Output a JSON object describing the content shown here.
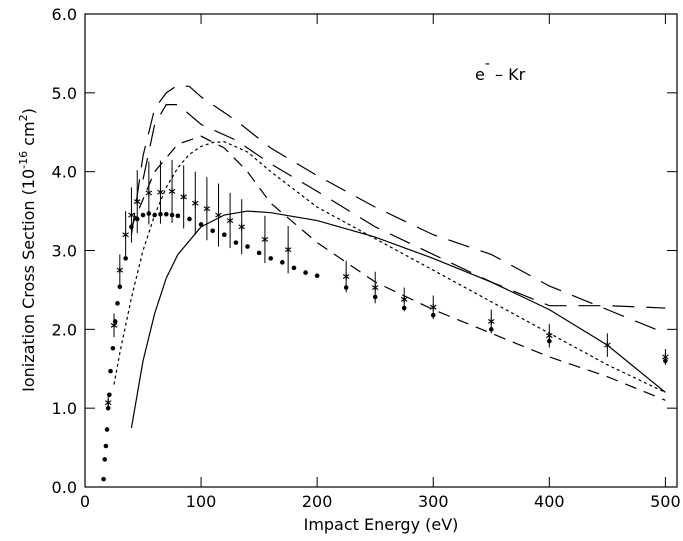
{
  "chart_data": {
    "type": "scatter",
    "x_label": "Impact Energy (eV)",
    "y_label": [
      "Ionization Cross Section  (10",
      "-16",
      " cm",
      "2",
      ")"
    ],
    "annotation": [
      "e",
      "-",
      " –  Kr"
    ],
    "xlim": [
      0,
      510
    ],
    "ylim": [
      0,
      6
    ],
    "xticks": [
      0,
      100,
      200,
      300,
      400,
      500
    ],
    "yticks": [
      {
        "value": 0,
        "label": "0.0"
      },
      {
        "value": 1,
        "label": "1.0"
      },
      {
        "value": 2,
        "label": "2.0"
      },
      {
        "value": 3,
        "label": "3.0"
      },
      {
        "value": 4,
        "label": "4.0"
      },
      {
        "value": 5,
        "label": "5.0"
      },
      {
        "value": 6,
        "label": "6.0"
      }
    ],
    "series": [
      {
        "style": "dot",
        "color": "#000000",
        "x": [
          16,
          17,
          18,
          19,
          20,
          21,
          22,
          24,
          26,
          28,
          30,
          35,
          40,
          45,
          50,
          55,
          60,
          65,
          70,
          75,
          80,
          90,
          100,
          110,
          120,
          130,
          140,
          150,
          160,
          170,
          180,
          190,
          200,
          225,
          250,
          275,
          300,
          350,
          400,
          500
        ],
        "y": [
          0.1,
          0.35,
          0.52,
          0.73,
          1.0,
          1.17,
          1.47,
          1.76,
          2.1,
          2.33,
          2.54,
          2.9,
          3.3,
          3.4,
          3.45,
          3.47,
          3.45,
          3.46,
          3.46,
          3.45,
          3.44,
          3.4,
          3.33,
          3.25,
          3.2,
          3.1,
          3.05,
          2.97,
          2.9,
          2.85,
          2.78,
          2.72,
          2.68,
          2.53,
          2.41,
          2.27,
          2.18,
          2.0,
          1.85,
          1.6
        ]
      },
      {
        "style": "star",
        "color": "#000000",
        "x": [
          20,
          25,
          30,
          35,
          40,
          45,
          55,
          65,
          75,
          85,
          95,
          105,
          115,
          125,
          135,
          155,
          175,
          225,
          250,
          275,
          300,
          350,
          400,
          450,
          500
        ],
        "y": [
          1.07,
          2.05,
          2.75,
          3.2,
          3.45,
          3.62,
          3.73,
          3.74,
          3.75,
          3.68,
          3.6,
          3.53,
          3.45,
          3.38,
          3.3,
          3.14,
          3.01,
          2.67,
          2.53,
          2.38,
          2.28,
          2.1,
          1.92,
          1.8,
          1.65
        ],
        "errors": [
          0.1,
          0.15,
          0.2,
          0.3,
          0.35,
          0.4,
          0.4,
          0.4,
          0.4,
          0.4,
          0.4,
          0.4,
          0.4,
          0.35,
          0.35,
          0.3,
          0.3,
          0.2,
          0.2,
          0.15,
          0.15,
          0.15,
          0.15,
          0.15,
          0.1
        ]
      },
      {
        "style": "line",
        "dash": "none",
        "color": "#000000",
        "x": [
          40,
          50,
          60,
          70,
          80,
          100,
          120,
          140,
          160,
          200,
          250,
          300,
          350,
          400,
          450,
          500
        ],
        "y": [
          0.75,
          1.6,
          2.2,
          2.65,
          2.95,
          3.3,
          3.45,
          3.5,
          3.48,
          3.38,
          3.17,
          2.9,
          2.6,
          2.25,
          1.8,
          1.2
        ]
      },
      {
        "style": "line",
        "dash": "3,3",
        "color": "#000000",
        "x": [
          25,
          30,
          40,
          50,
          60,
          70,
          80,
          90,
          100,
          110,
          120,
          140,
          160,
          200,
          250,
          300,
          350,
          400,
          450,
          500
        ],
        "y": [
          1.3,
          1.7,
          2.4,
          3.0,
          3.45,
          3.8,
          4.05,
          4.22,
          4.32,
          4.37,
          4.38,
          4.25,
          4.0,
          3.55,
          3.15,
          2.75,
          2.35,
          1.95,
          1.55,
          1.2
        ]
      },
      {
        "style": "line",
        "dash": "22,12",
        "color": "#000000",
        "x": [
          40,
          50,
          60,
          70,
          80,
          90,
          100,
          130,
          160,
          200,
          250,
          300,
          350,
          400,
          450,
          500
        ],
        "y": [
          3.2,
          4.2,
          4.8,
          5.0,
          5.1,
          5.08,
          4.95,
          4.65,
          4.3,
          3.95,
          3.55,
          3.2,
          2.95,
          2.55,
          2.25,
          1.95
        ]
      },
      {
        "style": "line",
        "dash": "22,12",
        "color": "#000000",
        "x": [
          50,
          60,
          70,
          80,
          100,
          130,
          160,
          200,
          250,
          300,
          350,
          400,
          450,
          500
        ],
        "y": [
          3.9,
          4.6,
          4.85,
          4.85,
          4.6,
          4.4,
          4.1,
          3.75,
          3.3,
          2.95,
          2.6,
          2.3,
          2.3,
          2.27
        ]
      },
      {
        "style": "line",
        "dash": "12,8",
        "color": "#000000",
        "x": [
          40,
          60,
          80,
          100,
          120,
          140,
          160,
          200,
          250,
          300,
          350,
          400,
          450,
          500
        ],
        "y": [
          3.3,
          4.0,
          4.35,
          4.45,
          4.3,
          4.0,
          3.6,
          3.1,
          2.6,
          2.25,
          1.95,
          1.65,
          1.4,
          1.1
        ]
      }
    ]
  }
}
